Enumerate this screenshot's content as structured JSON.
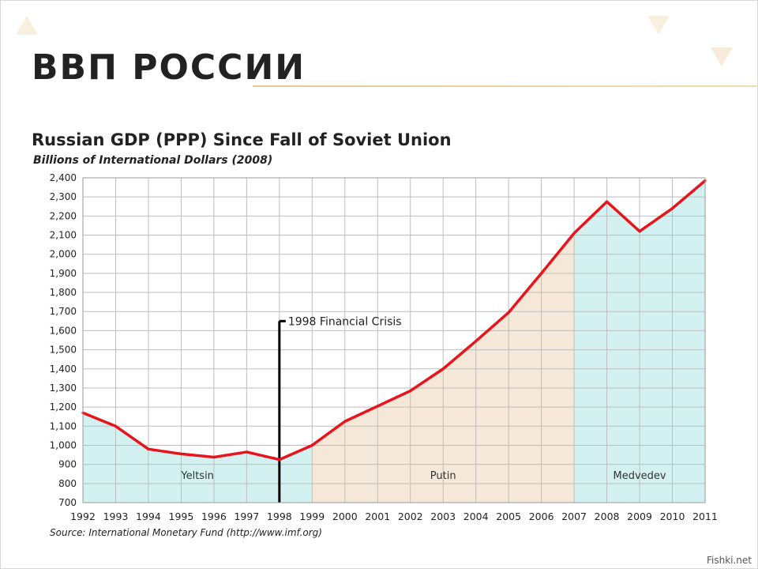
{
  "slide": {
    "title": "ВВП РОССИИ",
    "watermark": "Fishki.net"
  },
  "chart_data": {
    "type": "line",
    "title": "Russian GDP (PPP) Since Fall of Soviet Union",
    "subtitle": "Billions of International Dollars (2008)",
    "source": "Source: International Monetary Fund (http://www.imf.org)",
    "xlabel": "",
    "ylabel": "",
    "x": [
      1992,
      1993,
      1994,
      1995,
      1996,
      1997,
      1998,
      1999,
      2000,
      2001,
      2002,
      2003,
      2004,
      2005,
      2006,
      2007,
      2008,
      2009,
      2010,
      2011
    ],
    "series": [
      {
        "values": [
          1170,
          1100,
          980,
          955,
          938,
          965,
          925,
          1000,
          1125,
          1205,
          1285,
          1400,
          1545,
          1695,
          1900,
          2110,
          2275,
          2120,
          2240,
          2385
        ],
        "color": "#e8141c"
      }
    ],
    "ylim": [
      700,
      2400
    ],
    "yticks": [
      "700",
      "800",
      "900",
      "1,000",
      "1,100",
      "1,200",
      "1,300",
      "1,400",
      "1,500",
      "1,600",
      "1,700",
      "1,800",
      "1,900",
      "2,000",
      "2,100",
      "2,200",
      "2,300",
      "2,400"
    ],
    "grid": true,
    "areas": [
      {
        "label": "Yeltsin",
        "start": 1992,
        "end": 1999,
        "color": "#d4f1f1"
      },
      {
        "label": "Putin",
        "start": 1999,
        "end": 2007,
        "color": "#f6e8d8"
      },
      {
        "label": "Medvedev",
        "start": 2007,
        "end": 2011,
        "color": "#d4f1f1"
      }
    ],
    "annotation": {
      "label": "1998 Financial Crisis",
      "x": 1998,
      "y": 1650
    }
  }
}
